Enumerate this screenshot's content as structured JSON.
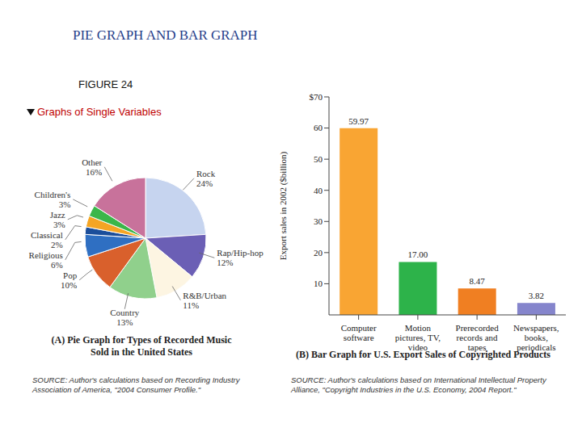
{
  "header": {
    "title": "PIE GRAPH AND BAR GRAPH",
    "figure": "FIGURE 24",
    "subtitle": "Graphs of Single Variables"
  },
  "chart_data": [
    {
      "type": "pie",
      "title": "(A) Pie Graph for Types of Recorded Music Sold in the United States",
      "source": "SOURCE: Author's calculations based on Recording Industry Association of America, \"2004 Consumer Profile.\"",
      "categories": [
        "Rock",
        "Rap/Hip-hop",
        "R&B/Urban",
        "Country",
        "Pop",
        "Religious",
        "Classical",
        "Jazz",
        "Children's",
        "Other"
      ],
      "values": [
        24,
        12,
        11,
        13,
        10,
        6,
        2,
        3,
        3,
        16
      ],
      "value_labels": [
        "24%",
        "12%",
        "11%",
        "13%",
        "10%",
        "6%",
        "2%",
        "3%",
        "3%",
        "16%"
      ],
      "colors": [
        "#c6d4ef",
        "#6b5fb5",
        "#fdf5e2",
        "#90d08c",
        "#d9602c",
        "#2f6fc2",
        "#1b4e9b",
        "#f5a524",
        "#3bb64a",
        "#c8729b"
      ],
      "data_labels": true
    },
    {
      "type": "bar",
      "title": "(B) Bar Graph for U.S. Export Sales of Copyrighted Products",
      "source": "SOURCE: Author's calculations based on International Intellectual Property Alliance, \"Copyright Industries in the U.S. Economy, 2004 Report.\"",
      "y_label": "Export sales in 2002 ($billion)",
      "categories": [
        "Computer software",
        "Motion pictures, TV, video",
        "Prerecorded records and tapes",
        "Newspapers, books, periodicals"
      ],
      "values": [
        59.97,
        17.0,
        8.47,
        3.82
      ],
      "value_labels": [
        "59.97",
        "17.00",
        "8.47",
        "3.82"
      ],
      "colors": [
        "#f9a533",
        "#2db34a",
        "#f07f22",
        "#8585cc"
      ],
      "ylim": [
        0,
        70
      ],
      "yticks": [
        10,
        20,
        30,
        40,
        50,
        60,
        {
          "value": 70,
          "label": "$70"
        }
      ],
      "grid": false,
      "data_labels": true
    }
  ]
}
